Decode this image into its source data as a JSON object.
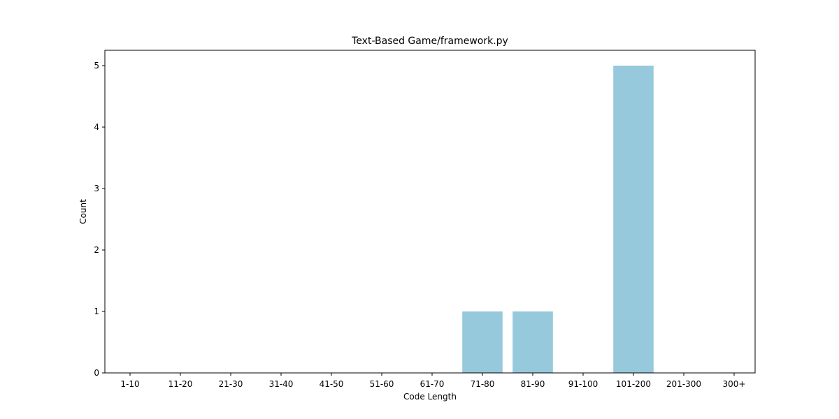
{
  "chart_data": {
    "type": "bar",
    "title": "Text-Based Game/framework.py",
    "xlabel": "Code Length",
    "ylabel": "Count",
    "categories": [
      "1-10",
      "11-20",
      "21-30",
      "31-40",
      "41-50",
      "51-60",
      "61-70",
      "71-80",
      "81-90",
      "91-100",
      "101-200",
      "201-300",
      "300+"
    ],
    "values": [
      0,
      0,
      0,
      0,
      0,
      0,
      0,
      1,
      1,
      0,
      5,
      0,
      0
    ],
    "yticks": [
      "0",
      "1",
      "2",
      "3",
      "4",
      "5"
    ],
    "ylim": [
      0,
      5.25
    ],
    "bar_color": "#96c9dc",
    "grid": false,
    "legend": "none"
  }
}
